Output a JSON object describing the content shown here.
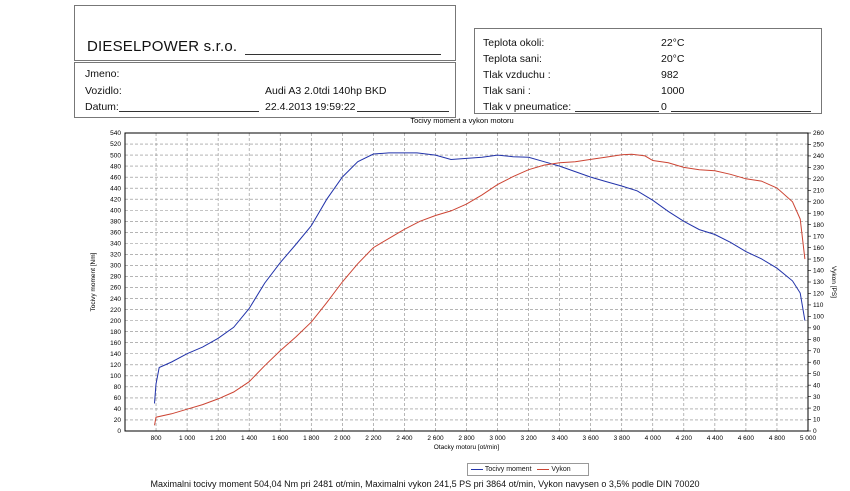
{
  "header": {
    "company": "DIESELPOWER s.r.o.",
    "fields": [
      {
        "label": "Jmeno:",
        "value": ""
      },
      {
        "label": "Vozidlo:",
        "value": "Audi A3 2.0tdi 140hp BKD"
      },
      {
        "label": "Datum:",
        "value": "22.4.2013 19:59:22"
      }
    ]
  },
  "conditions": [
    {
      "label": "Teplota okoli:",
      "value": "22°C"
    },
    {
      "label": "Teplota sani:",
      "value": "20°C"
    },
    {
      "label": "Tlak vzduchu :",
      "value": "982"
    },
    {
      "label": "Tlak sani :",
      "value": "1000"
    },
    {
      "label": "Tlak v pneumatice:",
      "value": "0"
    }
  ],
  "summary": "Maximalni tocivy moment 504,04 Nm pri 2481 ot/min,  Maximalni vykon 241,5 PS pri 3864 ot/min,  Vykon navysen o 3,5% podle DIN 70020",
  "chart_data": {
    "type": "line",
    "title": "Tocivy moment a vykon motoru",
    "xlabel": "Otacky motoru [ot/min]",
    "ylabel_left": "Tocivy moment [Nm]",
    "ylabel_right": "Vykon [PS]",
    "xlim": [
      600,
      5000
    ],
    "ylim_left": [
      0,
      540
    ],
    "ylim_right": [
      0,
      260
    ],
    "x_ticks": [
      "800",
      "1 000",
      "1 200",
      "1 400",
      "1 600",
      "1 800",
      "2 000",
      "2 200",
      "2 400",
      "2 600",
      "2 800",
      "3 000",
      "3 200",
      "3 400",
      "3 600",
      "3 800",
      "4 000",
      "4 200",
      "4 400",
      "4 600",
      "4 800",
      "5 000"
    ],
    "grid": true,
    "legend_position": "bottom",
    "series": [
      {
        "name": "Tocivy moment",
        "axis": "left",
        "color": "#2233aa",
        "x": [
          790,
          800,
          820,
          900,
          1000,
          1100,
          1200,
          1300,
          1400,
          1500,
          1600,
          1700,
          1800,
          1900,
          2000,
          2100,
          2200,
          2300,
          2481,
          2600,
          2700,
          2800,
          2900,
          3000,
          3100,
          3200,
          3300,
          3400,
          3500,
          3600,
          3700,
          3800,
          3900,
          4000,
          4100,
          4200,
          4300,
          4400,
          4500,
          4600,
          4700,
          4800,
          4900,
          4950,
          4980
        ],
        "values": [
          50,
          85,
          115,
          125,
          140,
          152,
          168,
          188,
          222,
          268,
          305,
          338,
          372,
          420,
          460,
          488,
          502,
          504,
          504,
          500,
          492,
          494,
          496,
          500,
          497,
          496,
          488,
          480,
          470,
          460,
          452,
          444,
          435,
          418,
          398,
          380,
          365,
          356,
          342,
          325,
          312,
          295,
          272,
          250,
          200
        ]
      },
      {
        "name": "Vykon",
        "axis": "right",
        "color": "#cc4433",
        "x": [
          790,
          800,
          900,
          1000,
          1100,
          1200,
          1300,
          1400,
          1500,
          1600,
          1700,
          1800,
          1900,
          2000,
          2100,
          2200,
          2300,
          2400,
          2500,
          2600,
          2700,
          2800,
          2900,
          3000,
          3100,
          3200,
          3300,
          3400,
          3500,
          3600,
          3700,
          3800,
          3864,
          3950,
          4000,
          4100,
          4200,
          4300,
          4400,
          4500,
          4600,
          4700,
          4800,
          4900,
          4950,
          4980
        ],
        "values": [
          5,
          12,
          15,
          19,
          23,
          28,
          34,
          43,
          57,
          70,
          82,
          95,
          112,
          130,
          146,
          160,
          168,
          176,
          183,
          188,
          192,
          198,
          206,
          215,
          222,
          228,
          232,
          234,
          235,
          237,
          239,
          241,
          241.5,
          240,
          236,
          234,
          230,
          228,
          227,
          224,
          220,
          218,
          212,
          200,
          185,
          150
        ]
      }
    ]
  }
}
